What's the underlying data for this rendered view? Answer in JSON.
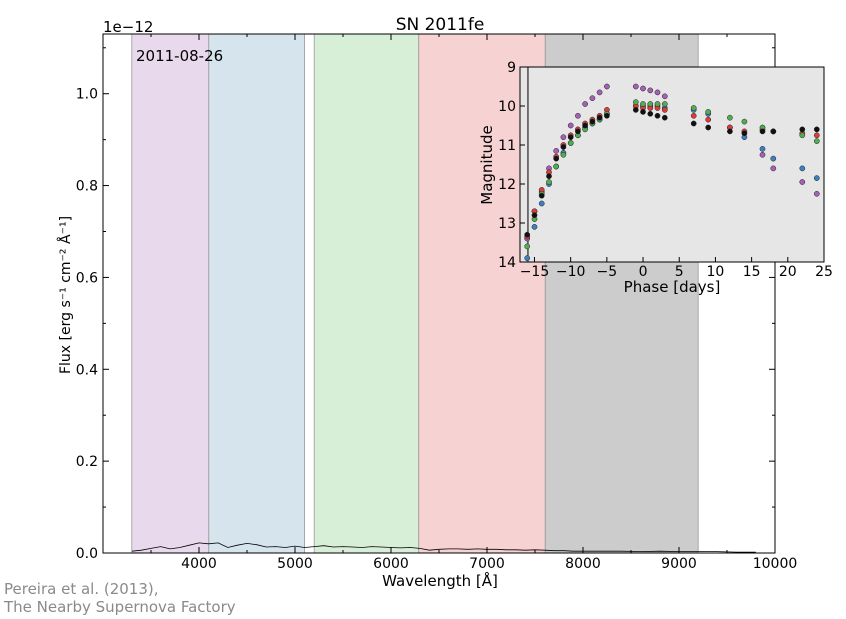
{
  "chart_data": [
    {
      "type": "line",
      "title": "SN 2011fe",
      "xlabel": "Wavelength [Å]",
      "ylabel": "Flux [erg s⁻¹ cm⁻² Å⁻¹]",
      "y_offset_label": "1e−12",
      "date_annotation": "2011-08-26",
      "xlim": [
        3000,
        10000
      ],
      "ylim": [
        0,
        1.13
      ],
      "x_ticks": [
        4000,
        5000,
        6000,
        7000,
        8000,
        9000,
        10000
      ],
      "x_tick_labels": [
        "4000",
        "5000",
        "6000",
        "7000",
        "8000",
        "9000",
        "10000"
      ],
      "y_ticks": [
        0.0,
        0.2,
        0.4,
        0.6,
        0.8,
        1.0
      ],
      "y_tick_labels": [
        "0.0",
        "0.2",
        "0.4",
        "0.6",
        "0.8",
        "1.0"
      ],
      "filter_bands": [
        {
          "range": [
            3300,
            4102
          ],
          "color": "#e8d9ec"
        },
        {
          "range": [
            4102,
            5100
          ],
          "color": "#d5e4ed"
        },
        {
          "range": [
            5200,
            6289
          ],
          "color": "#d8efd7"
        },
        {
          "range": [
            6289,
            7607
          ],
          "color": "#f6d2d2"
        },
        {
          "range": [
            7607,
            9200
          ],
          "color": "#cccccc"
        }
      ],
      "spectrum": {
        "x": [
          3300,
          3400,
          3500,
          3600,
          3700,
          3800,
          3900,
          4000,
          4100,
          4200,
          4300,
          4400,
          4500,
          4600,
          4700,
          4800,
          4900,
          5000,
          5100,
          5200,
          5300,
          5400,
          5500,
          5600,
          5700,
          5800,
          5900,
          6000,
          6100,
          6200,
          6300,
          6400,
          6500,
          6600,
          6700,
          6800,
          6900,
          7000,
          7100,
          7200,
          7300,
          7400,
          7500,
          7600,
          7700,
          7800,
          7900,
          8000,
          8100,
          8200,
          8400,
          8600,
          8800,
          9000,
          9200,
          9400,
          9600,
          9800
        ],
        "y": [
          0.004,
          0.006,
          0.01,
          0.014,
          0.009,
          0.012,
          0.017,
          0.022,
          0.02,
          0.022,
          0.012,
          0.017,
          0.021,
          0.018,
          0.013,
          0.014,
          0.012,
          0.015,
          0.012,
          0.014,
          0.016,
          0.013,
          0.014,
          0.013,
          0.012,
          0.014,
          0.013,
          0.012,
          0.011,
          0.012,
          0.01,
          0.006,
          0.008,
          0.009,
          0.009,
          0.008,
          0.009,
          0.008,
          0.008,
          0.007,
          0.007,
          0.006,
          0.007,
          0.006,
          0.005,
          0.005,
          0.004,
          0.004,
          0.004,
          0.004,
          0.004,
          0.003,
          0.004,
          0.003,
          0.003,
          0.003,
          0.002,
          0.002
        ]
      }
    },
    {
      "type": "scatter",
      "xlabel": "Phase [days]",
      "ylabel": "Magnitude",
      "xlim": [
        -17,
        25
      ],
      "ylim": [
        14,
        9
      ],
      "x_ticks": [
        -15,
        -10,
        -5,
        0,
        5,
        10,
        15,
        20,
        25
      ],
      "x_tick_labels": [
        "−15",
        "−10",
        "−5",
        "0",
        "5",
        "10",
        "15",
        "20",
        "25"
      ],
      "y_ticks": [
        9,
        10,
        11,
        12,
        13,
        14
      ],
      "y_tick_labels": [
        "9",
        "10",
        "11",
        "12",
        "13",
        "14"
      ],
      "current_phase": -15.9,
      "background": "#e6e6e6",
      "series": [
        {
          "color": "#a55fb5",
          "x": [
            -16.0,
            -15.0,
            -14.0,
            -13.0,
            -12.0,
            -11.0,
            -10.0,
            -9.0,
            -8.0,
            -7.0,
            -6.0,
            -5.0,
            -1.0,
            0.0,
            1.0,
            2.0,
            3.0,
            16.5,
            18.0,
            22.0,
            24.0
          ],
          "y": [
            13.4,
            12.7,
            12.2,
            11.6,
            11.15,
            10.8,
            10.5,
            10.25,
            9.95,
            9.8,
            9.65,
            9.5,
            9.5,
            9.55,
            9.6,
            9.65,
            9.75,
            11.25,
            11.6,
            11.95,
            12.25
          ]
        },
        {
          "color": "#3f7fbf",
          "x": [
            -16.0,
            -15.0,
            -14.0,
            -13.0,
            -12.0,
            -11.0,
            -10.0,
            -9.0,
            -8.0,
            -7.0,
            -6.0,
            -5.0,
            -1.0,
            0.0,
            1.0,
            2.0,
            3.0,
            7.0,
            9.0,
            12.0,
            14.0,
            16.5,
            18.0,
            22.0,
            24.0
          ],
          "y": [
            13.9,
            13.1,
            12.5,
            12.0,
            11.55,
            11.2,
            10.95,
            10.75,
            10.55,
            10.45,
            10.35,
            10.2,
            10.0,
            10.0,
            10.0,
            10.0,
            10.05,
            10.1,
            10.2,
            10.55,
            10.8,
            11.1,
            11.35,
            11.6,
            11.85
          ]
        },
        {
          "color": "#e03b3b",
          "x": [
            -16.0,
            -15.0,
            -14.0,
            -13.0,
            -12.0,
            -11.0,
            -10.0,
            -9.0,
            -8.0,
            -7.0,
            -6.0,
            -5.0,
            -1.0,
            0.0,
            1.0,
            2.0,
            3.0,
            7.0,
            9.0,
            12.0,
            14.0,
            16.5,
            18.0,
            22.0,
            24.0
          ],
          "y": [
            13.35,
            12.7,
            12.15,
            11.7,
            11.3,
            11.0,
            10.75,
            10.6,
            10.45,
            10.35,
            10.25,
            10.1,
            10.0,
            10.05,
            10.05,
            10.05,
            10.1,
            10.25,
            10.35,
            10.55,
            10.65,
            10.6,
            10.65,
            10.7,
            10.75
          ]
        },
        {
          "color": "#4fae4f",
          "x": [
            -16.0,
            -15.0,
            -14.0,
            -13.0,
            -12.0,
            -11.0,
            -10.0,
            -9.0,
            -8.0,
            -7.0,
            -6.0,
            -5.0,
            -1.0,
            0.0,
            1.0,
            2.0,
            3.0,
            7.0,
            9.0,
            12.0,
            14.0,
            16.5,
            18.0,
            22.0,
            24.0
          ],
          "y": [
            13.6,
            12.9,
            12.25,
            11.95,
            11.55,
            11.25,
            10.95,
            10.75,
            10.6,
            10.45,
            10.35,
            10.2,
            9.9,
            9.95,
            9.95,
            9.95,
            9.95,
            10.05,
            10.15,
            10.3,
            10.4,
            10.55,
            10.65,
            10.75,
            10.9
          ]
        },
        {
          "color": "#111111",
          "x": [
            -16.0,
            -15.0,
            -14.0,
            -13.0,
            -12.0,
            -11.0,
            -10.0,
            -9.0,
            -8.0,
            -7.0,
            -6.0,
            -5.0,
            -1.0,
            0.0,
            1.0,
            2.0,
            3.0,
            7.0,
            9.0,
            12.0,
            14.0,
            16.5,
            18.0,
            22.0,
            24.0
          ],
          "y": [
            13.3,
            12.8,
            12.3,
            11.8,
            11.35,
            11.05,
            10.8,
            10.65,
            10.5,
            10.4,
            10.3,
            10.25,
            10.1,
            10.15,
            10.2,
            10.25,
            10.3,
            10.45,
            10.55,
            10.65,
            10.7,
            10.65,
            10.65,
            10.6,
            10.6
          ]
        }
      ]
    }
  ],
  "credit": {
    "line1": "Pereira et al. (2013),",
    "line2": "The Nearby Supernova Factory"
  }
}
